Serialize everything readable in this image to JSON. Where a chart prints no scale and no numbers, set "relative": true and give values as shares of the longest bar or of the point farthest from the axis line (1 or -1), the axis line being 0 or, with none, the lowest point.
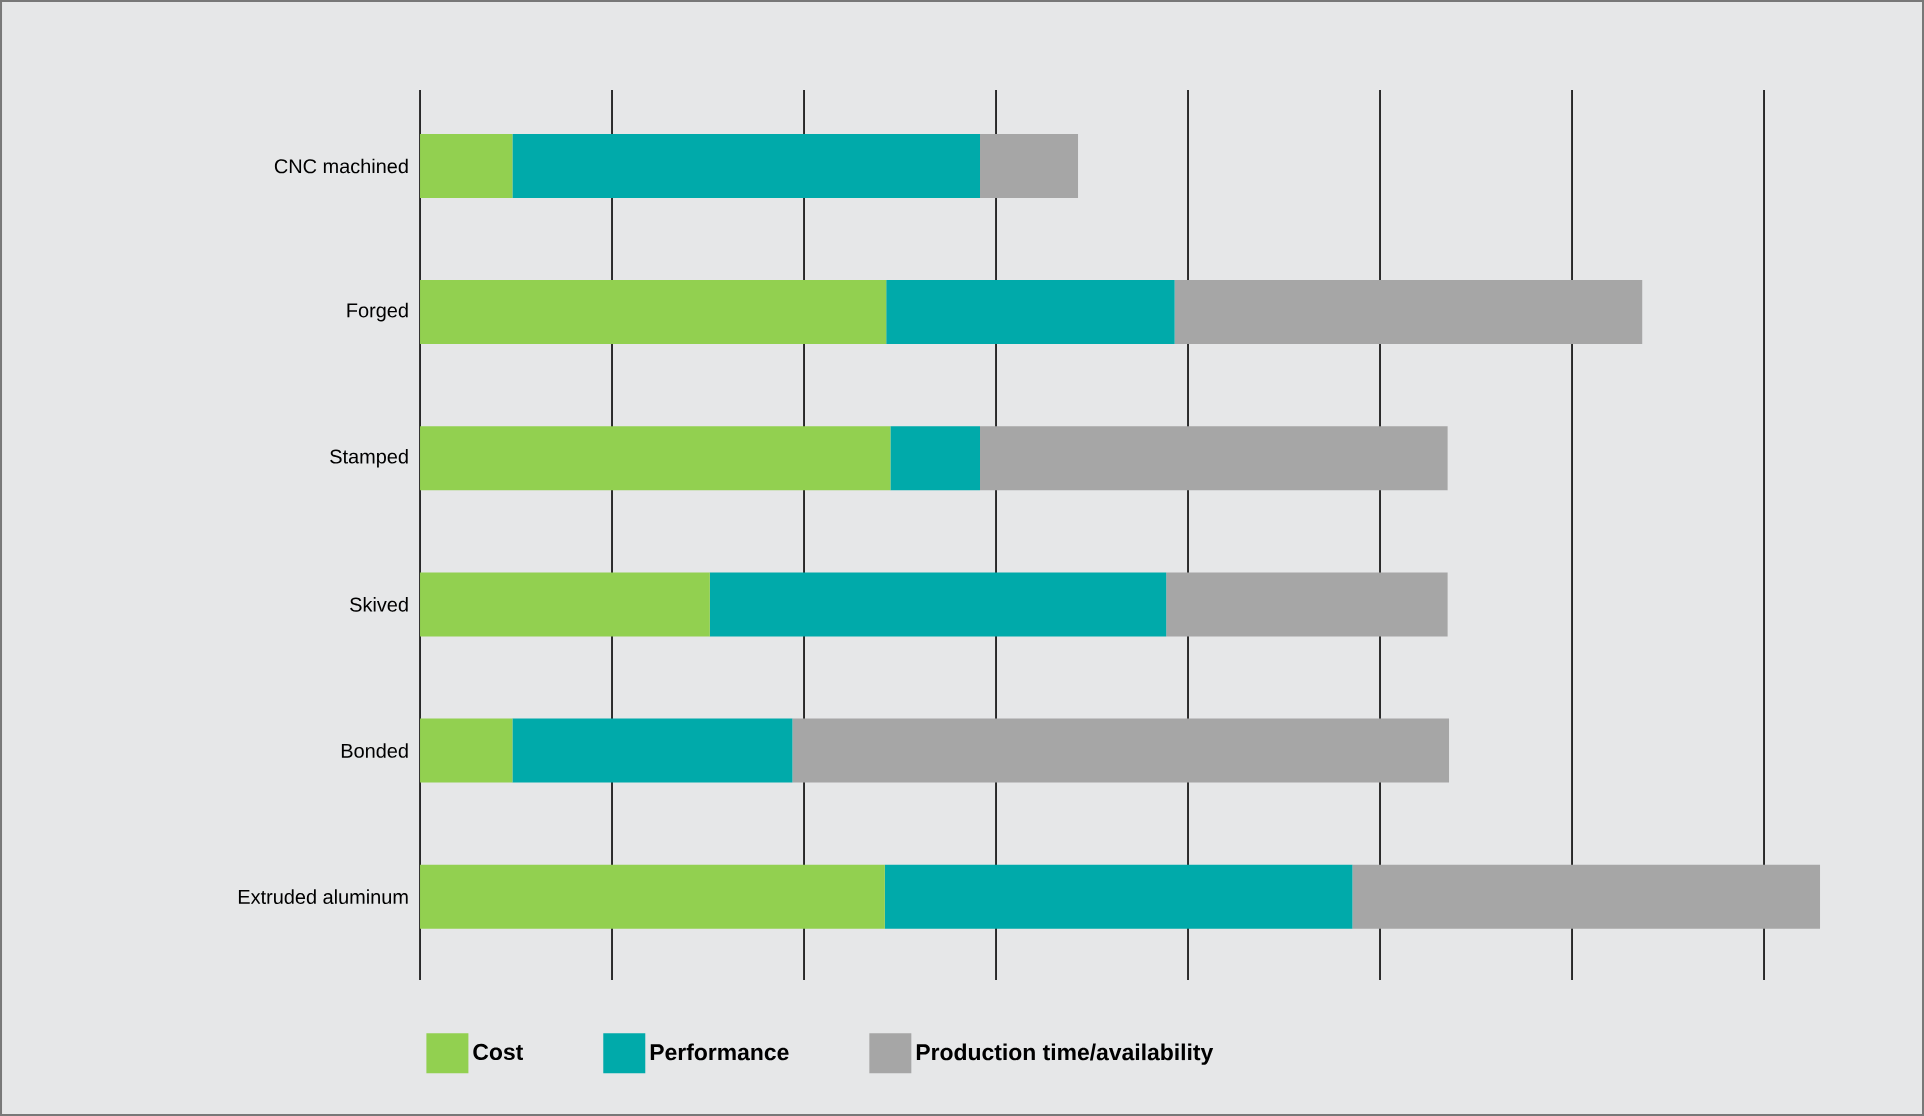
{
  "chart_data": {
    "type": "bar",
    "orientation": "horizontal",
    "stacked": true,
    "relative": true,
    "grid": "x",
    "legend": "bottom",
    "categories": [
      "CNC machined",
      "Forged",
      "Stamped",
      "Skived",
      "Bonded",
      "Extruded aluminum"
    ],
    "series": [
      {
        "name": "Cost",
        "color": "#92d050",
        "values": [
          0.066,
          0.333,
          0.336,
          0.207,
          0.066,
          0.332
        ]
      },
      {
        "name": "Performance",
        "color": "#00aaaa",
        "values": [
          0.334,
          0.206,
          0.064,
          0.326,
          0.2,
          0.334
        ]
      },
      {
        "name": "Production time/availability",
        "color": "#a6a6a6",
        "values": [
          0.07,
          0.334,
          0.334,
          0.201,
          0.469,
          0.334
        ]
      }
    ]
  }
}
